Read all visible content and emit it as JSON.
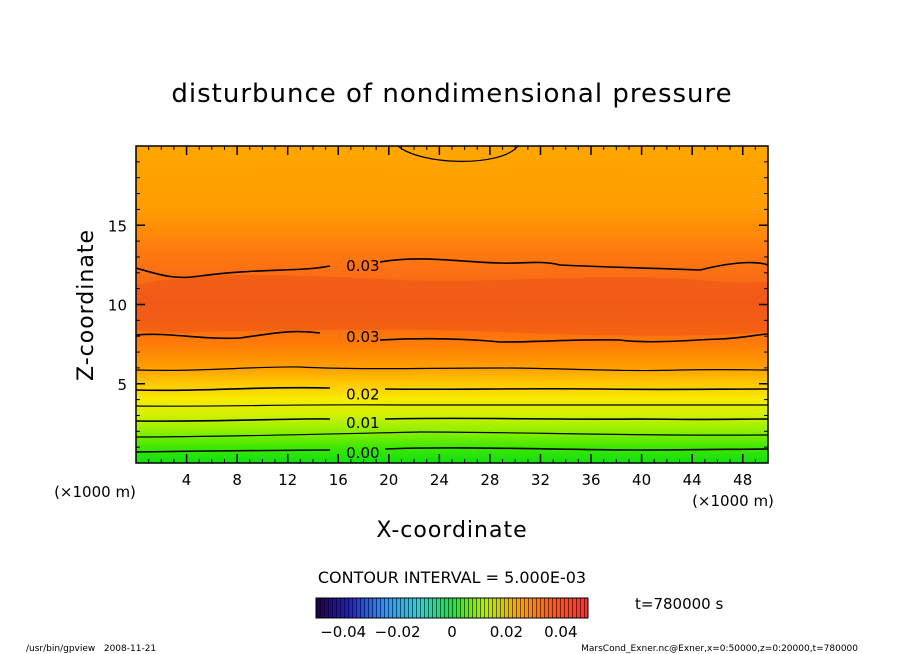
{
  "chart_data": {
    "type": "contour",
    "title": "disturbunce of nondimensional pressure",
    "xlabel": "X-coordinate",
    "ylabel": "Z-coordinate",
    "x_unit": "(×1000 m)",
    "y_unit": "(×1000 m)",
    "xlim": [
      0,
      50
    ],
    "ylim": [
      0,
      20
    ],
    "xticks": [
      "4",
      "8",
      "12",
      "16",
      "20",
      "24",
      "28",
      "32",
      "36",
      "40",
      "44",
      "48"
    ],
    "yticks": [
      "5",
      "10",
      "15"
    ],
    "contour_interval_label": "CONTOUR INTERVAL = 5.000E-03",
    "time_label": "t=780000 s",
    "colorbar": {
      "ticks": [
        "−0.04",
        "−0.02",
        "0",
        "0.02",
        "0.04"
      ],
      "range": [
        -0.05,
        0.05
      ]
    },
    "contour_labels": [
      {
        "text": "0.03",
        "x": 17,
        "z": 12.5
      },
      {
        "text": "0.03",
        "x": 17,
        "z": 8.0
      },
      {
        "text": "0.02",
        "x": 17,
        "z": 4.4
      },
      {
        "text": "0.01",
        "x": 17,
        "z": 2.6
      },
      {
        "text": "0.00",
        "x": 17,
        "z": 0.7
      }
    ],
    "footer_left": "/usr/bin/gpview   2008-11-21",
    "footer_right": "MarsCond_Exner.nc@Exner,x=0:50000,z=0:20000,t=780000"
  }
}
